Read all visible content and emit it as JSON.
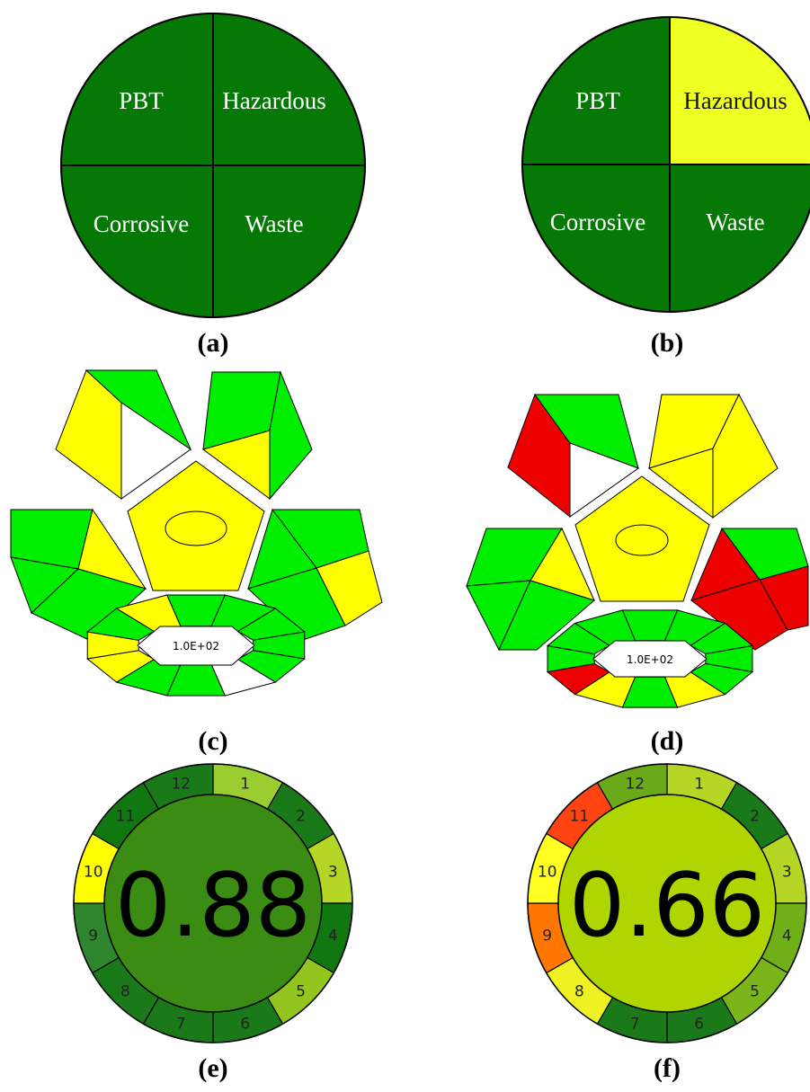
{
  "colors": {
    "dark_green": "#067806",
    "bright_green": "#00ee00",
    "yellow": "#ffff00",
    "pale_yellow": "#eeff22",
    "red": "#ee0000",
    "white": "#ffffff",
    "outline": "#000000"
  },
  "nemi": {
    "a": {
      "label": "(a)",
      "quadrants": [
        {
          "text": "PBT",
          "color": "#067806"
        },
        {
          "text": "Hazardous",
          "color": "#067806"
        },
        {
          "text": "Corrosive",
          "color": "#067806"
        },
        {
          "text": "Waste",
          "color": "#067806"
        }
      ]
    },
    "b": {
      "label": "(b)",
      "quadrants": [
        {
          "text": "PBT",
          "color": "#067806"
        },
        {
          "text": "Hazardous",
          "color": "#eeff22"
        },
        {
          "text": "Corrosive",
          "color": "#067806"
        },
        {
          "text": "Waste",
          "color": "#067806"
        }
      ]
    }
  },
  "gapi": {
    "c": {
      "label": "(c)",
      "center_value": "1.0E+02",
      "top_left": [
        "#ffff00",
        "#00ee00",
        "#ffffff"
      ],
      "top_right": [
        "#00ee00",
        "#00ee00",
        "#ffff00"
      ],
      "center_pentagon": "#ffff00",
      "mid_left": [
        "#00ee00",
        "#ffff00",
        "#00ee00",
        "#00ee00"
      ],
      "mid_right": [
        "#00ee00",
        "#00ee00",
        "#ffff00",
        "#00ee00"
      ],
      "bottom_ring": [
        "#00ee00",
        "#00ee00",
        "#00ee00",
        "#00ee00",
        "#00ee00",
        "#ffffff",
        "#00ee00",
        "#00ee00",
        "#ffff00",
        "#ffff00",
        "#00ee00",
        "#ffff00"
      ]
    },
    "d": {
      "label": "(d)",
      "center_value": "1.0E+02",
      "top_left": [
        "#ee0000",
        "#00ee00",
        "#ffffff"
      ],
      "top_right": [
        "#ffff00",
        "#ffff00",
        "#ffff00"
      ],
      "center_pentagon": "#ffff00",
      "mid_left": [
        "#00ee00",
        "#ffff00",
        "#00ee00",
        "#00ee00"
      ],
      "mid_right": [
        "#00ee00",
        "#ee0000",
        "#ee0000",
        "#ee0000"
      ],
      "bottom_ring": [
        "#00ee00",
        "#00ee00",
        "#00ee00",
        "#00ee00",
        "#00ee00",
        "#ffff00",
        "#00ee00",
        "#ffff00",
        "#ee0000",
        "#00ee00",
        "#00ee00",
        "#00ee00"
      ]
    }
  },
  "agree": {
    "e": {
      "label": "(e)",
      "score": "0.88",
      "center_color": "#3a8c12",
      "segments": [
        {
          "n": "1",
          "color": "#9acd32"
        },
        {
          "n": "2",
          "color": "#1a7a1a"
        },
        {
          "n": "3",
          "color": "#b5d624"
        },
        {
          "n": "4",
          "color": "#117711"
        },
        {
          "n": "5",
          "color": "#93c51f"
        },
        {
          "n": "6",
          "color": "#1a7a1a"
        },
        {
          "n": "7",
          "color": "#1a7a1a"
        },
        {
          "n": "8",
          "color": "#1a7a1a"
        },
        {
          "n": "9",
          "color": "#2e862e"
        },
        {
          "n": "10",
          "color": "#ffff00"
        },
        {
          "n": "11",
          "color": "#117711"
        },
        {
          "n": "12",
          "color": "#1a7a1a"
        }
      ]
    },
    "f": {
      "label": "(f)",
      "score": "0.66",
      "center_color": "#afd600",
      "segments": [
        {
          "n": "1",
          "color": "#b5d624"
        },
        {
          "n": "2",
          "color": "#1a7a1a"
        },
        {
          "n": "3",
          "color": "#b5d624"
        },
        {
          "n": "4",
          "color": "#6fb019"
        },
        {
          "n": "5",
          "color": "#7ab51b"
        },
        {
          "n": "6",
          "color": "#1a7a1a"
        },
        {
          "n": "7",
          "color": "#1a7a1a"
        },
        {
          "n": "8",
          "color": "#eef222"
        },
        {
          "n": "9",
          "color": "#ff7700"
        },
        {
          "n": "10",
          "color": "#ffff22"
        },
        {
          "n": "11",
          "color": "#ff4411"
        },
        {
          "n": "12",
          "color": "#6aaa1a"
        }
      ]
    }
  }
}
